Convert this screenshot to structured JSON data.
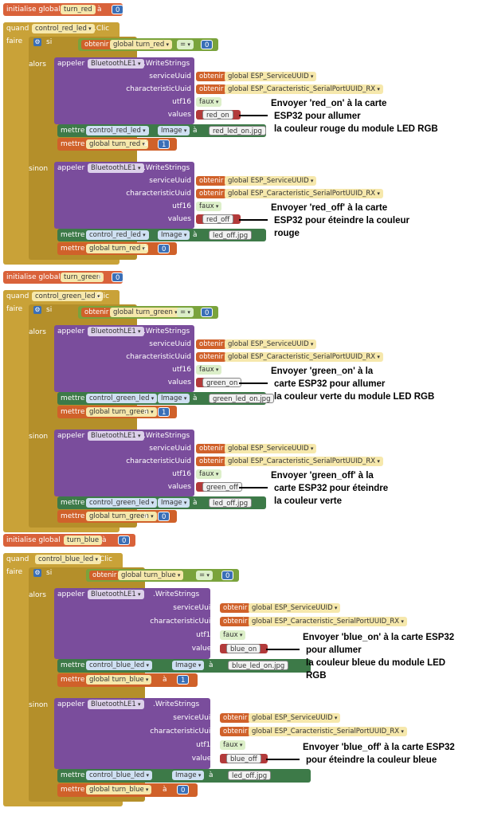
{
  "colors": {
    "init": "#d9623a",
    "event": "#c9a238",
    "purple": "#7a4d9c",
    "green": "#3d7a48",
    "string": "#b23a3a",
    "number": "#3a6fb7"
  },
  "icons": {
    "gear": "gear-icon",
    "dropdown": "chevron-down-icon"
  },
  "groups": [
    {
      "init": {
        "label": "initialise global",
        "var": "turn_red",
        "to": "à",
        "value": "0"
      },
      "event": {
        "when": "quand",
        "component": "control_red_led",
        "event": ".Clic",
        "do": "faire"
      },
      "if": {
        "label": "si",
        "get": "obtenir",
        "var": "global turn_red",
        "op": "=",
        "value": "0"
      },
      "then": {
        "label": "alors",
        "call": "appeler",
        "component": "BluetoothLE1",
        "method": ".WriteStrings",
        "service_label": "serviceUuid",
        "service_get": "obtenir",
        "service_var": "global ESP_ServiceUUID",
        "char_label": "characteristicUuid",
        "char_get": "obtenir",
        "char_var": "global ESP_Caracteristic_SerialPortUUID_RX",
        "utf16_label": "utf16",
        "utf16_value": "faux",
        "values_label": "values",
        "values_value": "red_on",
        "set": "mettre",
        "set_comp": "control_red_led",
        "set_prop": "Image",
        "set_to": "à",
        "set_value": "red_led_on.jpg",
        "set2": "mettre",
        "set2_var": "global turn_red",
        "set2_to": "à",
        "set2_value": "1",
        "note": [
          "Envoyer 'red_on' à la carte",
          "ESP32 pour allumer",
          "la couleur rouge du module LED RGB"
        ]
      },
      "else": {
        "label": "sinon",
        "call": "appeler",
        "component": "BluetoothLE1",
        "method": ".WriteStrings",
        "service_label": "serviceUuid",
        "service_get": "obtenir",
        "service_var": "global ESP_ServiceUUID",
        "char_label": "characteristicUuid",
        "char_get": "obtenir",
        "char_var": "global ESP_Caracteristic_SerialPortUUID_RX",
        "utf16_label": "utf16",
        "utf16_value": "faux",
        "values_label": "values",
        "values_value": "red_off",
        "set": "mettre",
        "set_comp": "control_red_led",
        "set_prop": "Image",
        "set_to": "à",
        "set_value": "led_off.jpg",
        "set2": "mettre",
        "set2_var": "global turn_red",
        "set2_to": "à",
        "set2_value": "0",
        "note": [
          "Envoyer 'red_off' à la carte",
          "ESP32 pour éteindre la couleur",
          "rouge"
        ]
      }
    },
    {
      "init": {
        "label": "initialise global",
        "var": "turn_green",
        "to": "à",
        "value": "0"
      },
      "event": {
        "when": "quand",
        "component": "control_green_led",
        "event": ".Clic",
        "do": "faire"
      },
      "if": {
        "label": "si",
        "get": "obtenir",
        "var": "global turn_green",
        "op": "=",
        "value": "0"
      },
      "then": {
        "label": "alors",
        "call": "appeler",
        "component": "BluetoothLE1",
        "method": ".WriteStrings",
        "service_label": "serviceUuid",
        "service_get": "obtenir",
        "service_var": "global ESP_ServiceUUID",
        "char_label": "characteristicUuid",
        "char_get": "obtenir",
        "char_var": "global ESP_Caracteristic_SerialPortUUID_RX",
        "utf16_label": "utf16",
        "utf16_value": "faux",
        "values_label": "values",
        "values_value": "green_on",
        "set": "mettre",
        "set_comp": "control_green_led",
        "set_prop": "Image",
        "set_to": "à",
        "set_value": "green_led_on.jpg",
        "set2": "mettre",
        "set2_var": "global turn_green",
        "set2_to": "à",
        "set2_value": "1",
        "note": [
          "Envoyer 'green_on' à la",
          "carte ESP32 pour allumer",
          "la couleur verte du module LED RGB"
        ]
      },
      "else": {
        "label": "sinon",
        "call": "appeler",
        "component": "BluetoothLE1",
        "method": ".WriteStrings",
        "service_label": "serviceUuid",
        "service_get": "obtenir",
        "service_var": "global ESP_ServiceUUID",
        "char_label": "characteristicUuid",
        "char_get": "obtenir",
        "char_var": "global ESP_Caracteristic_SerialPortUUID_RX",
        "utf16_label": "utf16",
        "utf16_value": "faux",
        "values_label": "values",
        "values_value": "green_off",
        "set": "mettre",
        "set_comp": "control_green_led",
        "set_prop": "Image",
        "set_to": "à",
        "set_value": "led_off.jpg",
        "set2": "mettre",
        "set2_var": "global turn_green",
        "set2_to": "à",
        "set2_value": "0",
        "note": [
          "Envoyer 'green_off' à la",
          "carte ESP32 pour éteindre",
          "la couleur verte"
        ]
      }
    },
    {
      "init": {
        "label": "initialise global",
        "var": "turn_blue",
        "to": "à",
        "value": "0"
      },
      "event": {
        "when": "quand",
        "component": "control_blue_led",
        "event": ".Clic",
        "do": "faire"
      },
      "if": {
        "label": "si",
        "get": "obtenir",
        "var": "global turn_blue",
        "op": "=",
        "value": "0"
      },
      "then": {
        "label": "alors",
        "call": "appeler",
        "component": "BluetoothLE1",
        "method": ".WriteStrings",
        "service_label": "serviceUuid",
        "service_get": "obtenir",
        "service_var": "global ESP_ServiceUUID",
        "char_label": "characteristicUuid",
        "char_get": "obtenir",
        "char_var": "global ESP_Caracteristic_SerialPortUUID_RX",
        "utf16_label": "utf16",
        "utf16_value": "faux",
        "values_label": "values",
        "values_value": "blue_on",
        "set": "mettre",
        "set_comp": "control_blue_led",
        "set_prop": "Image",
        "set_to": "à",
        "set_value": "blue_led_on.jpg",
        "set2": "mettre",
        "set2_var": "global turn_blue",
        "set2_to": "à",
        "set2_value": "1",
        "note": [
          "Envoyer 'blue_on' à la carte ESP32",
          "pour allumer",
          "la couleur bleue du module LED",
          "RGB"
        ]
      },
      "else": {
        "label": "sinon",
        "call": "appeler",
        "component": "BluetoothLE1",
        "method": ".WriteStrings",
        "service_label": "serviceUuid",
        "service_get": "obtenir",
        "service_var": "global ESP_ServiceUUID",
        "char_label": "characteristicUuid",
        "char_get": "obtenir",
        "char_var": "global ESP_Caracteristic_SerialPortUUID_RX",
        "utf16_label": "utf16",
        "utf16_value": "faux",
        "values_label": "values",
        "values_value": "blue_off",
        "set": "mettre",
        "set_comp": "control_blue_led",
        "set_prop": "Image",
        "set_to": "à",
        "set_value": "led_off.jpg",
        "set2": "mettre",
        "set2_var": "global turn_blue",
        "set2_to": "à",
        "set2_value": "0",
        "note": [
          "Envoyer 'blue_off' à la carte ESP32",
          "pour éteindre la couleur bleue"
        ]
      }
    }
  ]
}
